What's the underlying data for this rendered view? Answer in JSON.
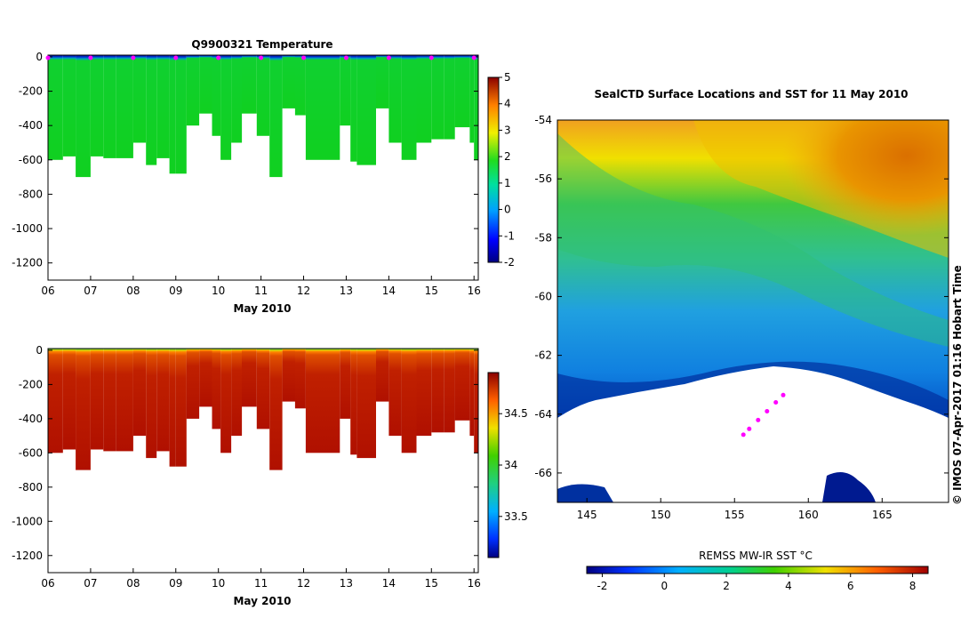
{
  "chart_data": [
    {
      "type": "heatmap",
      "title": "Q9900321  Temperature",
      "xlabel": "May 2010",
      "ylabel": "",
      "x_ticks": [
        "06",
        "07",
        "08",
        "09",
        "10",
        "11",
        "12",
        "13",
        "14",
        "15",
        "16"
      ],
      "x_range": [
        6,
        16.1
      ],
      "y_ticks": [
        0,
        -200,
        -400,
        -600,
        -800,
        -1000,
        -1200
      ],
      "y_range": [
        -1300,
        10
      ],
      "profile_x": [
        6.0,
        6.35,
        6.65,
        7.0,
        7.3,
        7.6,
        8.0,
        8.3,
        8.55,
        8.85,
        9.0,
        9.25,
        9.55,
        9.85,
        10.05,
        10.3,
        10.55,
        10.9,
        11.2,
        11.5,
        11.8,
        12.05,
        12.5,
        12.85,
        13.1,
        13.25,
        13.7,
        14.0,
        14.3,
        14.65,
        15.0,
        15.3,
        15.55,
        15.9,
        16.0
      ],
      "profile_depth": [
        600,
        580,
        700,
        580,
        590,
        590,
        500,
        630,
        590,
        680,
        680,
        400,
        330,
        460,
        600,
        500,
        330,
        460,
        700,
        300,
        340,
        600,
        600,
        400,
        610,
        630,
        300,
        500,
        600,
        500,
        480,
        480,
        410,
        500,
        600
      ],
      "shallow_value": -1.2,
      "deep_value": 2.0,
      "colorbar": {
        "min": -2,
        "max": 5,
        "ticks": [
          5,
          4,
          3,
          2,
          1,
          0,
          -1,
          -2
        ]
      }
    },
    {
      "type": "heatmap",
      "title": "",
      "xlabel": "May 2010",
      "ylabel": "",
      "x_ticks": [
        "06",
        "07",
        "08",
        "09",
        "10",
        "11",
        "12",
        "13",
        "14",
        "15",
        "16"
      ],
      "x_range": [
        6,
        16.1
      ],
      "y_ticks": [
        0,
        -200,
        -400,
        -600,
        -800,
        -1000,
        -1200
      ],
      "y_range": [
        -1300,
        10
      ],
      "profile_x": [
        6.0,
        6.35,
        6.65,
        7.0,
        7.3,
        7.6,
        8.0,
        8.3,
        8.55,
        8.85,
        9.0,
        9.25,
        9.55,
        9.85,
        10.05,
        10.3,
        10.55,
        10.9,
        11.2,
        11.5,
        11.8,
        12.05,
        12.5,
        12.85,
        13.1,
        13.25,
        13.7,
        14.0,
        14.3,
        14.65,
        15.0,
        15.3,
        15.55,
        15.9,
        16.0
      ],
      "profile_depth": [
        600,
        580,
        700,
        580,
        590,
        590,
        500,
        630,
        590,
        680,
        680,
        400,
        330,
        460,
        600,
        500,
        330,
        460,
        700,
        300,
        340,
        600,
        600,
        400,
        610,
        630,
        300,
        500,
        600,
        500,
        480,
        480,
        410,
        500,
        600
      ],
      "colorbar": {
        "min": 33.1,
        "max": 34.9,
        "ticks": [
          34.5,
          34,
          33.5
        ]
      }
    },
    {
      "type": "heatmap",
      "title": "SealCTD Surface Locations and SST for 11 May 2010",
      "xlabel": "",
      "ylabel": "",
      "x_ticks": [
        145,
        150,
        155,
        160,
        165
      ],
      "x_range": [
        143,
        169.5
      ],
      "y_ticks": [
        -54,
        -56,
        -58,
        -60,
        -62,
        -64,
        -66
      ],
      "y_range": [
        -67,
        -54
      ],
      "colorbar_label": "REMSS MW-IR SST °C",
      "colorbar": {
        "min": -2.5,
        "max": 8.5,
        "ticks": [
          -2,
          0,
          2,
          4,
          6,
          8
        ]
      },
      "sst_warm_front_lat": -57.5,
      "ice_edge_lat": -62.5,
      "track": [
        [
          158.3,
          -63.35
        ],
        [
          157.8,
          -63.6
        ],
        [
          157.2,
          -63.9
        ],
        [
          156.6,
          -64.2
        ],
        [
          156.0,
          -64.5
        ],
        [
          155.6,
          -64.7
        ]
      ]
    }
  ],
  "credit": "©  IMOS 07-Apr-2017 01:16 Hobart Time"
}
